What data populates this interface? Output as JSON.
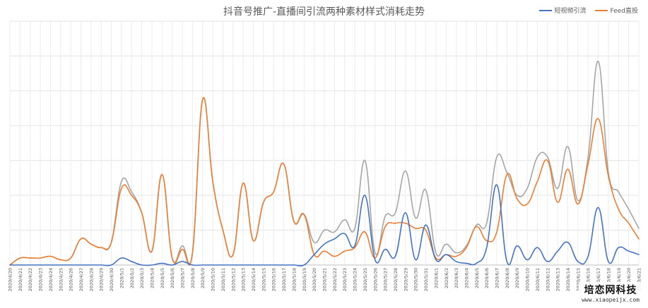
{
  "chart_data": {
    "type": "line",
    "title": "抖音号推广-直播间引流两种素材样式消耗走势",
    "xlabel": "",
    "ylabel": "",
    "grid": true,
    "legend_position": "top-right",
    "y_axis_labels_shown": false,
    "ylim": [
      0,
      14
    ],
    "categories": [
      "2020/4/20",
      "2020/4/21",
      "2020/4/22",
      "2020/4/23",
      "2020/4/24",
      "2020/4/25",
      "2020/4/26",
      "2020/4/27",
      "2020/4/28",
      "2020/4/29",
      "2020/4/30",
      "2020/5/1",
      "2020/5/2",
      "2020/5/3",
      "2020/5/4",
      "2020/5/5",
      "2020/5/6",
      "2020/5/7",
      "2020/5/8",
      "2020/5/9",
      "2020/5/10",
      "2020/5/11",
      "2020/5/12",
      "2020/5/13",
      "2020/5/14",
      "2020/5/15",
      "2020/5/16",
      "2020/5/17",
      "2020/5/18",
      "2020/5/19",
      "2020/5/20",
      "2020/5/21",
      "2020/5/22",
      "2020/5/23",
      "2020/5/24",
      "2020/5/25",
      "2020/5/26",
      "2020/5/27",
      "2020/5/28",
      "2020/5/29",
      "2020/5/30",
      "2020/5/31",
      "2020/6/1",
      "2020/6/2",
      "2020/6/3",
      "2020/6/4",
      "2020/6/5",
      "2020/6/6",
      "2020/6/7",
      "2020/6/8",
      "2020/6/9",
      "2020/6/10",
      "2020/6/11",
      "2020/6/12",
      "2020/6/13",
      "2020/6/14",
      "2020/6/15",
      "2020/6/16",
      "2020/6/17",
      "2020/6/18",
      "2020/6/19",
      "2020/6/20",
      "2020/6/21"
    ],
    "series": [
      {
        "name": "短视频引流",
        "color": "#4472C4",
        "values": [
          0,
          0,
          0,
          0,
          0,
          0,
          0,
          0,
          0,
          0,
          0,
          0.4,
          0.2,
          0,
          0,
          0.1,
          0,
          0.2,
          0,
          0,
          0,
          0,
          0,
          0,
          0,
          0,
          0,
          0,
          0,
          0,
          0.6,
          1.2,
          1.5,
          1.8,
          1.1,
          4.0,
          0.3,
          0.9,
          0.5,
          3.0,
          0.3,
          2.3,
          0.3,
          0.6,
          0.2,
          0.1,
          0.1,
          1.0,
          4.6,
          0.2,
          1.1,
          0.3,
          1.0,
          0.2,
          0.8,
          1.3,
          0.2,
          0.5,
          3.3,
          0.2,
          1.0,
          0.8,
          0.6
        ]
      },
      {
        "name": "Feed直投",
        "color": "#ED7D31",
        "values": [
          0,
          0.4,
          0.4,
          0.4,
          0.5,
          0.3,
          0.4,
          1.5,
          1.2,
          1.0,
          1.3,
          4.4,
          4.0,
          3.0,
          0.8,
          5.2,
          0.4,
          0.9,
          0.7,
          9.5,
          4.8,
          2.0,
          0.6,
          4.7,
          1.4,
          3.6,
          4.2,
          5.8,
          2.5,
          2.9,
          0.6,
          0.8,
          0.5,
          0.8,
          1.0,
          1.9,
          0.4,
          2.2,
          2.4,
          2.4,
          2.1,
          2.0,
          0.4,
          0.6,
          0.5,
          1.0,
          2.2,
          1.4,
          1.9,
          5.2,
          3.8,
          3.5,
          4.8,
          6.0,
          3.6,
          5.5,
          3.5,
          5.8,
          8.4,
          5.1,
          3.2,
          2.4,
          1.5
        ]
      },
      {
        "name": "",
        "color": "#A5A5A5",
        "values": [
          0,
          0.4,
          0.4,
          0.4,
          0.5,
          0.3,
          0.4,
          1.5,
          1.2,
          1.0,
          1.3,
          4.8,
          4.2,
          3.0,
          0.8,
          5.2,
          0.4,
          1.1,
          0.7,
          9.5,
          4.8,
          2.0,
          0.6,
          4.7,
          1.4,
          3.6,
          4.2,
          5.8,
          2.5,
          2.9,
          1.3,
          2.0,
          1.9,
          2.6,
          2.1,
          6.0,
          0.7,
          2.8,
          3.0,
          5.4,
          2.7,
          4.3,
          0.7,
          1.2,
          0.7,
          1.1,
          2.3,
          2.4,
          6.2,
          5.3,
          4.0,
          4.4,
          6.2,
          6.2,
          4.4,
          6.8,
          3.7,
          6.2,
          11.7,
          5.3,
          4.2,
          3.2,
          2.1
        ]
      }
    ]
  },
  "legend": {
    "items": [
      {
        "label": "短视频引流",
        "color": "#4472C4"
      },
      {
        "label": "Feed直投",
        "color": "#ED7D31"
      }
    ]
  },
  "watermark": {
    "main": "培恋网科技",
    "sub": "www.xiaopeijx.com"
  }
}
